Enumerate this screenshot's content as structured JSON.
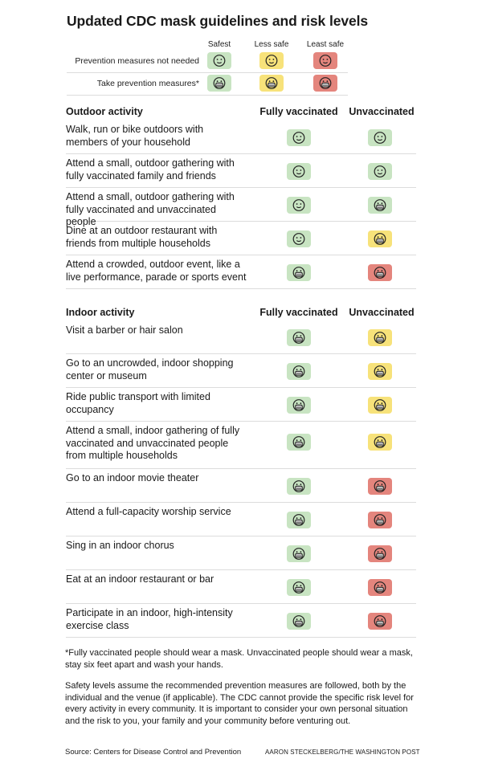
{
  "title": "Updated CDC mask guidelines and risk levels",
  "legend": {
    "levels": [
      "Safest",
      "Less safe",
      "Least safe"
    ],
    "rows": [
      {
        "label": "Prevention measures not needed",
        "icon": "smile"
      },
      {
        "label": "Take prevention measures*",
        "icon": "mask"
      }
    ]
  },
  "colors": {
    "safest": "#c8e4c2",
    "less_safe": "#f7e27a",
    "least_safe": "#e4857d"
  },
  "outdoor": {
    "heading": "Outdoor activity",
    "col_vaccinated": "Fully vaccinated",
    "col_unvaccinated": "Unvaccinated",
    "rows": [
      {
        "text": "Walk, run or bike outdoors with members of your household",
        "vaccinated": {
          "level": "safest",
          "icon": "smile"
        },
        "unvaccinated": {
          "level": "safest",
          "icon": "smile"
        }
      },
      {
        "text": "Attend a small, outdoor gathering with fully vaccinated family and friends",
        "vaccinated": {
          "level": "safest",
          "icon": "smile"
        },
        "unvaccinated": {
          "level": "safest",
          "icon": "smile"
        }
      },
      {
        "text": "Attend a small, outdoor gathering with fully vaccinated and unvaccinated people",
        "vaccinated": {
          "level": "safest",
          "icon": "smile"
        },
        "unvaccinated": {
          "level": "safest",
          "icon": "mask"
        }
      },
      {
        "text": "Dine at an outdoor restaurant with friends from multiple households",
        "vaccinated": {
          "level": "safest",
          "icon": "smile"
        },
        "unvaccinated": {
          "level": "less_safe",
          "icon": "mask"
        }
      },
      {
        "text": "Attend a crowded, outdoor event, like a live performance, parade or sports event",
        "vaccinated": {
          "level": "safest",
          "icon": "mask"
        },
        "unvaccinated": {
          "level": "least_safe",
          "icon": "mask"
        }
      }
    ]
  },
  "indoor": {
    "heading": "Indoor activity",
    "col_vaccinated": "Fully vaccinated",
    "col_unvaccinated": "Unvaccinated",
    "rows": [
      {
        "text": "Visit a barber or hair salon",
        "vaccinated": {
          "level": "safest",
          "icon": "mask"
        },
        "unvaccinated": {
          "level": "less_safe",
          "icon": "mask"
        }
      },
      {
        "text": "Go to an uncrowded, indoor shopping center or museum",
        "vaccinated": {
          "level": "safest",
          "icon": "mask"
        },
        "unvaccinated": {
          "level": "less_safe",
          "icon": "mask"
        }
      },
      {
        "text": "Ride public transport with limited occupancy",
        "vaccinated": {
          "level": "safest",
          "icon": "mask"
        },
        "unvaccinated": {
          "level": "less_safe",
          "icon": "mask"
        }
      },
      {
        "text": "Attend a small, indoor gathering of fully vaccinated and unvaccinated people from multiple households",
        "vaccinated": {
          "level": "safest",
          "icon": "mask"
        },
        "unvaccinated": {
          "level": "less_safe",
          "icon": "mask"
        }
      },
      {
        "text": "Go to an indoor movie theater",
        "vaccinated": {
          "level": "safest",
          "icon": "mask"
        },
        "unvaccinated": {
          "level": "least_safe",
          "icon": "mask"
        }
      },
      {
        "text": "Attend a full-capacity worship service",
        "vaccinated": {
          "level": "safest",
          "icon": "mask"
        },
        "unvaccinated": {
          "level": "least_safe",
          "icon": "mask"
        }
      },
      {
        "text": "Sing in an indoor chorus",
        "vaccinated": {
          "level": "safest",
          "icon": "mask"
        },
        "unvaccinated": {
          "level": "least_safe",
          "icon": "mask"
        }
      },
      {
        "text": "Eat at an indoor restaurant or bar",
        "vaccinated": {
          "level": "safest",
          "icon": "mask"
        },
        "unvaccinated": {
          "level": "least_safe",
          "icon": "mask"
        }
      },
      {
        "text": "Participate in an indoor, high-intensity exercise class",
        "vaccinated": {
          "level": "safest",
          "icon": "mask"
        },
        "unvaccinated": {
          "level": "least_safe",
          "icon": "mask"
        }
      }
    ]
  },
  "footnote": "*Fully vaccinated people should wear a mask. Unvaccinated people should wear a mask, stay six feet apart and wash your hands.",
  "note": "Safety levels assume the recommended prevention measures are followed, both by the individual and the venue (if applicable). The CDC cannot provide the specific risk level for every activity in every community. It is important to consider your own personal situation and the risk to you, your family and your community before venturing out.",
  "source": "Source: Centers for Disease Control and Prevention",
  "credit": "AARON STECKELBERG/THE WASHINGTON POST"
}
